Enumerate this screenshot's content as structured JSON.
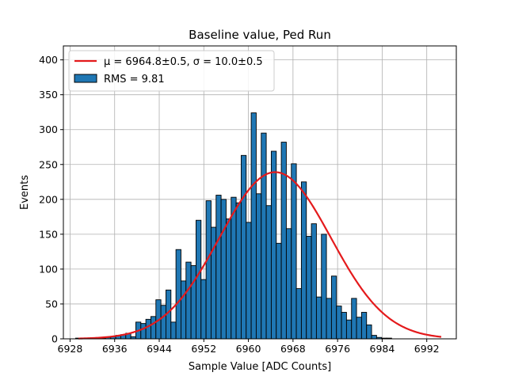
{
  "chart_data": {
    "type": "bar",
    "title": "Baseline value, Ped Run",
    "xlabel": "Sample Value [ADC Counts]",
    "ylabel": "Events",
    "xlim": [
      6926.8,
      6997.3
    ],
    "ylim": [
      0,
      420
    ],
    "xticks": [
      6928,
      6936,
      6944,
      6952,
      6960,
      6968,
      6976,
      6984,
      6992
    ],
    "yticks": [
      0,
      50,
      100,
      150,
      200,
      250,
      300,
      350,
      400
    ],
    "grid": true,
    "legend_position": "top-left",
    "bin_start": 6929.0,
    "bin_width": 0.9,
    "histogram": {
      "name": "RMS = 9.81",
      "color": "#1f77b4",
      "edgecolor": "#000000",
      "values": [
        1,
        0,
        0,
        0,
        1,
        1,
        2,
        3,
        5,
        6,
        8,
        3,
        24,
        22,
        28,
        32,
        56,
        48,
        70,
        24,
        128,
        83,
        110,
        105,
        170,
        85,
        198,
        160,
        206,
        200,
        172,
        203,
        195,
        263,
        167,
        324,
        208,
        295,
        191,
        269,
        137,
        282,
        158,
        251,
        72,
        225,
        147,
        165,
        60,
        150,
        58,
        90,
        47,
        38,
        27,
        58,
        31,
        38,
        20,
        5,
        2,
        1,
        1,
        0,
        0
      ]
    },
    "fit": {
      "name": "μ = 6964.8±0.5, σ = 10.0±0.5",
      "color": "#e41a1c",
      "mu": 6964.8,
      "sigma": 10.0,
      "amplitude": 239,
      "x_range": [
        6929.5,
        6994.6
      ]
    }
  }
}
